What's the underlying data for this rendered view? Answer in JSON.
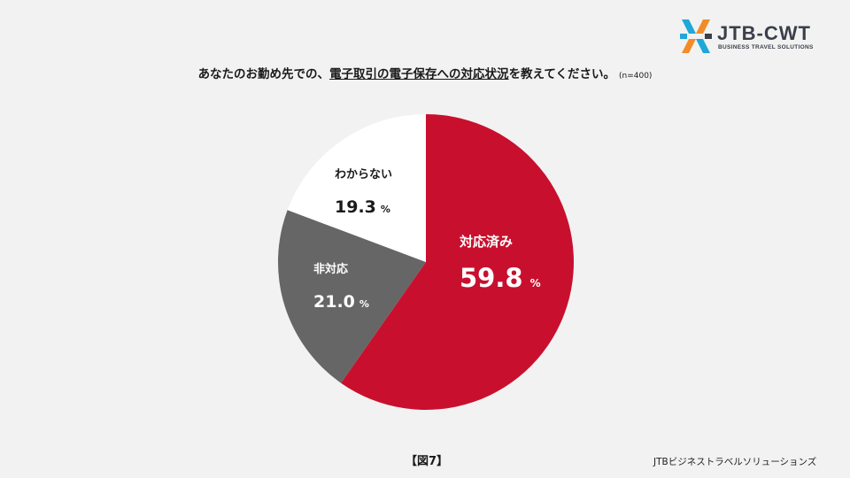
{
  "logo": {
    "name": "JTB-CWT",
    "tagline": "BUSINESS TRAVEL SOLUTIONS",
    "colors": [
      "#1ea7d8",
      "#f28c28",
      "#3a3f4a"
    ]
  },
  "question": {
    "part1": "あなたのお勤め先での、",
    "part2_underlined": "電子取引の電子保存への対応状況",
    "part3": "を教えてください。",
    "n_label": "(n=400)"
  },
  "figure_label": "【図7】",
  "source": "JTBビジネストラベルソリューションズ",
  "chart_data": {
    "type": "pie",
    "title": "あなたのお勤め先での、電子取引の電子保存への対応状況を教えてください。",
    "n": 400,
    "percent_symbol": "%",
    "slices": [
      {
        "label": "対応済み",
        "value": 59.8,
        "color": "#c8102e",
        "text_color": "#ffffff"
      },
      {
        "label": "非対応",
        "value": 21.0,
        "color": "#666666",
        "text_color": "#ffffff"
      },
      {
        "label": "わからない",
        "value": 19.3,
        "color": "#ffffff",
        "text_color": "#1a1a1a"
      }
    ]
  }
}
